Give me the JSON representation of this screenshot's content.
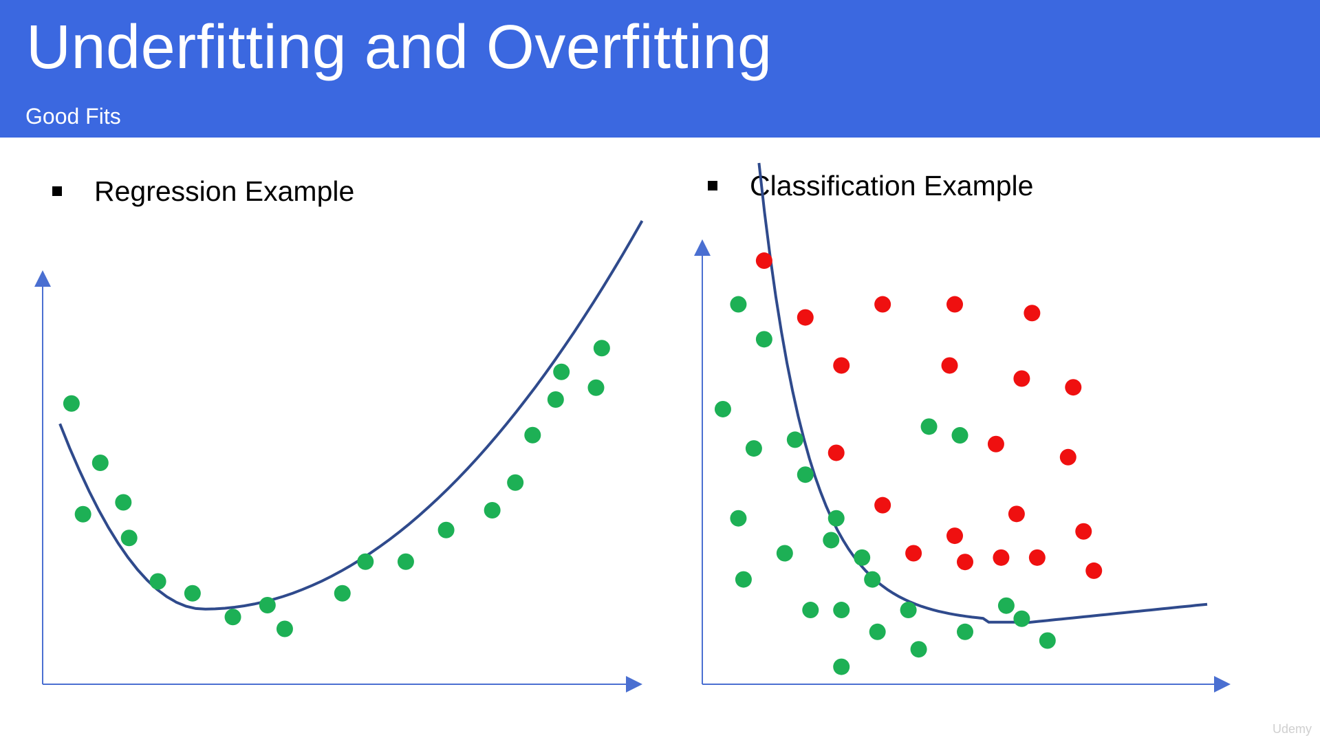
{
  "slide": {
    "title": "Underfitting and Overfitting",
    "subtitle": "Good Fits",
    "watermark": "Udemy"
  },
  "colors": {
    "banner": "#3b68e0",
    "axis": "#4a6fd1",
    "curve": "#2f4a8c",
    "green_points": "#1db055",
    "red_points": "#ef1010"
  },
  "regression": {
    "label": "Regression Example",
    "chart_data": {
      "type": "scatter",
      "description_series": "green points with quadratic fit curve",
      "points": [
        [
          0.5,
          7.1
        ],
        [
          1.0,
          5.6
        ],
        [
          0.7,
          4.3
        ],
        [
          1.4,
          4.6
        ],
        [
          1.5,
          3.7
        ],
        [
          2.0,
          2.6
        ],
        [
          2.6,
          2.3
        ],
        [
          3.3,
          1.7
        ],
        [
          3.9,
          2.0
        ],
        [
          4.2,
          1.4
        ],
        [
          5.2,
          2.3
        ],
        [
          5.6,
          3.1
        ],
        [
          6.3,
          3.1
        ],
        [
          7.0,
          3.9
        ],
        [
          7.8,
          4.4
        ],
        [
          8.2,
          5.1
        ],
        [
          8.5,
          6.3
        ],
        [
          8.9,
          7.2
        ],
        [
          9.0,
          7.9
        ],
        [
          9.6,
          7.5
        ],
        [
          9.7,
          8.5
        ]
      ],
      "fit_curve": "quadratic",
      "xlim": [
        0,
        10
      ],
      "ylim": [
        0,
        10
      ]
    }
  },
  "classification": {
    "label": "Classification Example",
    "chart_data": {
      "type": "scatter",
      "series": [
        {
          "color": "green",
          "points": [
            [
              0.7,
              8.7
            ],
            [
              1.2,
              7.9
            ],
            [
              0.4,
              6.3
            ],
            [
              1.0,
              5.4
            ],
            [
              1.8,
              5.6
            ],
            [
              2.0,
              4.8
            ],
            [
              0.7,
              3.8
            ],
            [
              1.6,
              3.0
            ],
            [
              2.5,
              3.3
            ],
            [
              2.6,
              3.8
            ],
            [
              3.1,
              2.9
            ],
            [
              0.8,
              2.4
            ],
            [
              2.1,
              1.7
            ],
            [
              2.7,
              1.7
            ],
            [
              3.3,
              2.4
            ],
            [
              3.4,
              1.2
            ],
            [
              2.7,
              0.4
            ],
            [
              4.0,
              1.7
            ],
            [
              4.2,
              0.8
            ],
            [
              5.1,
              1.2
            ],
            [
              5.9,
              1.8
            ],
            [
              6.2,
              1.5
            ],
            [
              5.0,
              5.7
            ],
            [
              4.4,
              5.9
            ],
            [
              6.7,
              1.0
            ]
          ]
        },
        {
          "color": "red",
          "points": [
            [
              1.2,
              9.7
            ],
            [
              2.0,
              8.4
            ],
            [
              3.5,
              8.7
            ],
            [
              4.9,
              8.7
            ],
            [
              6.4,
              8.5
            ],
            [
              2.7,
              7.3
            ],
            [
              4.8,
              7.3
            ],
            [
              6.2,
              7.0
            ],
            [
              7.2,
              6.8
            ],
            [
              5.7,
              5.5
            ],
            [
              7.1,
              5.2
            ],
            [
              2.6,
              5.3
            ],
            [
              3.5,
              4.1
            ],
            [
              4.9,
              3.4
            ],
            [
              6.1,
              3.9
            ],
            [
              7.4,
              3.5
            ],
            [
              4.1,
              3.0
            ],
            [
              5.1,
              2.8
            ],
            [
              5.8,
              2.9
            ],
            [
              6.5,
              2.9
            ],
            [
              7.6,
              2.6
            ]
          ]
        }
      ],
      "decision_boundary": "curved",
      "xlim": [
        0,
        10
      ],
      "ylim": [
        0,
        10
      ]
    }
  }
}
